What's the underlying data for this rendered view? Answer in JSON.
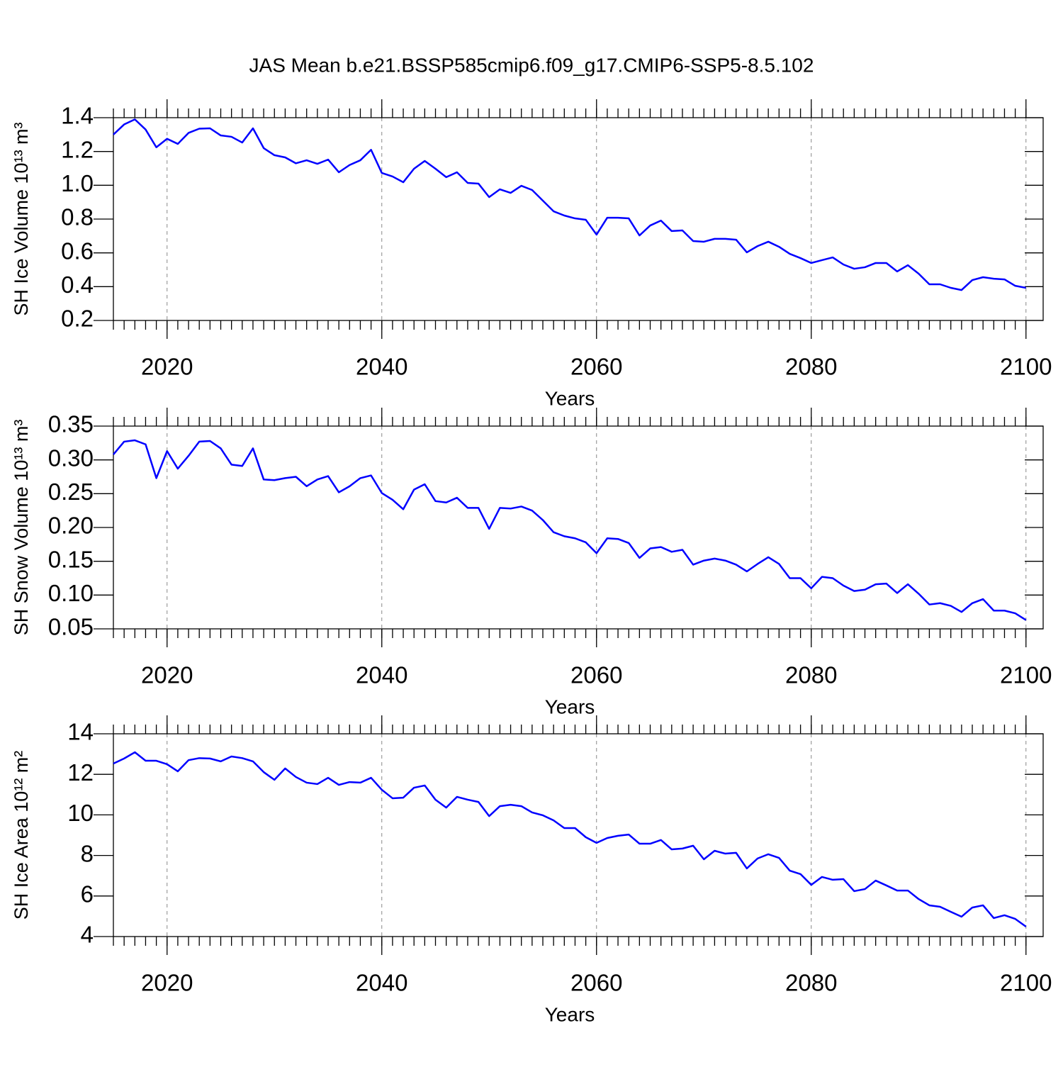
{
  "title": "JAS Mean b.e21.BSSP585cmip6.f09_g17.CMIP6-SSP5-8.5.102",
  "chart_data": [
    {
      "type": "line",
      "ylabel": "SH Ice Volume 10¹³ m³",
      "xlabel": "Years",
      "x": [
        2015,
        2016,
        2017,
        2018,
        2019,
        2020,
        2021,
        2022,
        2023,
        2024,
        2025,
        2026,
        2027,
        2028,
        2029,
        2030,
        2031,
        2032,
        2033,
        2034,
        2035,
        2036,
        2037,
        2038,
        2039,
        2040,
        2041,
        2042,
        2043,
        2044,
        2045,
        2046,
        2047,
        2048,
        2049,
        2050,
        2051,
        2052,
        2053,
        2054,
        2055,
        2056,
        2057,
        2058,
        2059,
        2060,
        2061,
        2062,
        2063,
        2064,
        2065,
        2066,
        2067,
        2068,
        2069,
        2070,
        2071,
        2072,
        2073,
        2074,
        2075,
        2076,
        2077,
        2078,
        2079,
        2080,
        2081,
        2082,
        2083,
        2084,
        2085,
        2086,
        2087,
        2088,
        2089,
        2090,
        2091,
        2092,
        2093,
        2094,
        2095,
        2096,
        2097,
        2098,
        2099,
        2100
      ],
      "series": [
        {
          "color": "#0000ff",
          "values": [
            1.3,
            1.36,
            1.39,
            1.33,
            1.225,
            1.275,
            1.245,
            1.31,
            1.335,
            1.337,
            1.295,
            1.287,
            1.253,
            1.337,
            1.22,
            1.178,
            1.165,
            1.13,
            1.148,
            1.127,
            1.152,
            1.077,
            1.12,
            1.148,
            1.21,
            1.073,
            1.052,
            1.018,
            1.098,
            1.144,
            1.098,
            1.048,
            1.077,
            1.014,
            1.01,
            0.93,
            0.976,
            0.955,
            0.997,
            0.972,
            0.909,
            0.846,
            0.821,
            0.804,
            0.796,
            0.708,
            0.808,
            0.808,
            0.804,
            0.703,
            0.762,
            0.791,
            0.729,
            0.733,
            0.67,
            0.666,
            0.683,
            0.683,
            0.678,
            0.603,
            0.64,
            0.666,
            0.636,
            0.594,
            0.569,
            0.54,
            0.557,
            0.573,
            0.531,
            0.506,
            0.515,
            0.54,
            0.54,
            0.49,
            0.527,
            0.477,
            0.414,
            0.414,
            0.393,
            0.38,
            0.439,
            0.456,
            0.447,
            0.443,
            0.405,
            0.393
          ]
        }
      ],
      "xlim": [
        2015,
        2101.6
      ],
      "xticks": [
        2020,
        2040,
        2060,
        2080,
        2100
      ],
      "ylim": [
        0.2,
        1.4
      ],
      "yticks": [
        0.2,
        0.4,
        0.6,
        0.8,
        {
          "value": 1,
          "label": "1.0"
        },
        1.2,
        1.4
      ],
      "grid": true
    },
    {
      "type": "line",
      "ylabel": "SH Snow Volume 10¹³ m³",
      "xlabel": "Years",
      "x": [
        2015,
        2016,
        2017,
        2018,
        2019,
        2020,
        2021,
        2022,
        2023,
        2024,
        2025,
        2026,
        2027,
        2028,
        2029,
        2030,
        2031,
        2032,
        2033,
        2034,
        2035,
        2036,
        2037,
        2038,
        2039,
        2040,
        2041,
        2042,
        2043,
        2044,
        2045,
        2046,
        2047,
        2048,
        2049,
        2050,
        2051,
        2052,
        2053,
        2054,
        2055,
        2056,
        2057,
        2058,
        2059,
        2060,
        2061,
        2062,
        2063,
        2064,
        2065,
        2066,
        2067,
        2068,
        2069,
        2070,
        2071,
        2072,
        2073,
        2074,
        2075,
        2076,
        2077,
        2078,
        2079,
        2080,
        2081,
        2082,
        2083,
        2084,
        2085,
        2086,
        2087,
        2088,
        2089,
        2090,
        2091,
        2092,
        2093,
        2094,
        2095,
        2096,
        2097,
        2098,
        2099,
        2100
      ],
      "series": [
        {
          "color": "#0000ff",
          "values": [
            0.308,
            0.327,
            0.329,
            0.323,
            0.273,
            0.313,
            0.287,
            0.306,
            0.327,
            0.328,
            0.317,
            0.293,
            0.291,
            0.317,
            0.271,
            0.27,
            0.273,
            0.275,
            0.261,
            0.271,
            0.276,
            0.252,
            0.261,
            0.273,
            0.277,
            0.251,
            0.241,
            0.227,
            0.256,
            0.264,
            0.239,
            0.237,
            0.244,
            0.229,
            0.229,
            0.198,
            0.229,
            0.228,
            0.231,
            0.225,
            0.211,
            0.193,
            0.187,
            0.184,
            0.178,
            0.162,
            0.184,
            0.183,
            0.177,
            0.155,
            0.169,
            0.171,
            0.164,
            0.167,
            0.145,
            0.151,
            0.154,
            0.151,
            0.145,
            0.135,
            0.146,
            0.156,
            0.146,
            0.125,
            0.125,
            0.11,
            0.127,
            0.125,
            0.114,
            0.106,
            0.108,
            0.116,
            0.117,
            0.103,
            0.116,
            0.102,
            0.086,
            0.088,
            0.084,
            0.075,
            0.088,
            0.094,
            0.077,
            0.077,
            0.073,
            0.063
          ]
        }
      ],
      "xlim": [
        2015,
        2101.6
      ],
      "xticks": [
        2020,
        2040,
        2060,
        2080,
        2100
      ],
      "ylim": [
        0.05,
        0.35
      ],
      "yticks": [
        0.05,
        {
          "value": 0.1,
          "label": "0.10"
        },
        0.15,
        {
          "value": 0.2,
          "label": "0.20"
        },
        0.25,
        {
          "value": 0.3,
          "label": "0.30"
        },
        0.35
      ],
      "grid": true
    },
    {
      "type": "line",
      "ylabel": "SH Ice Area 10¹² m²",
      "xlabel": "Years",
      "x": [
        2015,
        2016,
        2017,
        2018,
        2019,
        2020,
        2021,
        2022,
        2023,
        2024,
        2025,
        2026,
        2027,
        2028,
        2029,
        2030,
        2031,
        2032,
        2033,
        2034,
        2035,
        2036,
        2037,
        2038,
        2039,
        2040,
        2041,
        2042,
        2043,
        2044,
        2045,
        2046,
        2047,
        2048,
        2049,
        2050,
        2051,
        2052,
        2053,
        2054,
        2055,
        2056,
        2057,
        2058,
        2059,
        2060,
        2061,
        2062,
        2063,
        2064,
        2065,
        2066,
        2067,
        2068,
        2069,
        2070,
        2071,
        2072,
        2073,
        2074,
        2075,
        2076,
        2077,
        2078,
        2079,
        2080,
        2081,
        2082,
        2083,
        2084,
        2085,
        2086,
        2087,
        2088,
        2089,
        2090,
        2091,
        2092,
        2093,
        2094,
        2095,
        2096,
        2097,
        2098,
        2099,
        2100
      ],
      "series": [
        {
          "color": "#0000ff",
          "values": [
            12.53,
            12.78,
            13.09,
            12.67,
            12.67,
            12.5,
            12.15,
            12.7,
            12.8,
            12.78,
            12.64,
            12.88,
            12.8,
            12.64,
            12.11,
            11.73,
            12.29,
            11.87,
            11.59,
            11.52,
            11.83,
            11.48,
            11.62,
            11.59,
            11.83,
            11.24,
            10.82,
            10.85,
            11.34,
            11.45,
            10.75,
            10.36,
            10.89,
            10.75,
            10.64,
            9.94,
            10.43,
            10.5,
            10.43,
            10.12,
            9.98,
            9.73,
            9.35,
            9.35,
            8.9,
            8.62,
            8.86,
            8.97,
            9.03,
            8.58,
            8.58,
            8.76,
            8.3,
            8.34,
            8.48,
            7.81,
            8.23,
            8.09,
            8.13,
            7.36,
            7.85,
            8.06,
            7.88,
            7.25,
            7.08,
            6.55,
            6.94,
            6.8,
            6.83,
            6.24,
            6.34,
            6.76,
            6.52,
            6.27,
            6.27,
            5.85,
            5.54,
            5.47,
            5.22,
            4.98,
            5.43,
            5.54,
            4.91,
            5.05,
            4.87,
            4.49
          ]
        }
      ],
      "xlim": [
        2015,
        2101.6
      ],
      "xticks": [
        2020,
        2040,
        2060,
        2080,
        2100
      ],
      "ylim": [
        4,
        14
      ],
      "yticks": [
        4,
        6,
        8,
        10,
        12,
        14
      ],
      "grid": true
    }
  ]
}
